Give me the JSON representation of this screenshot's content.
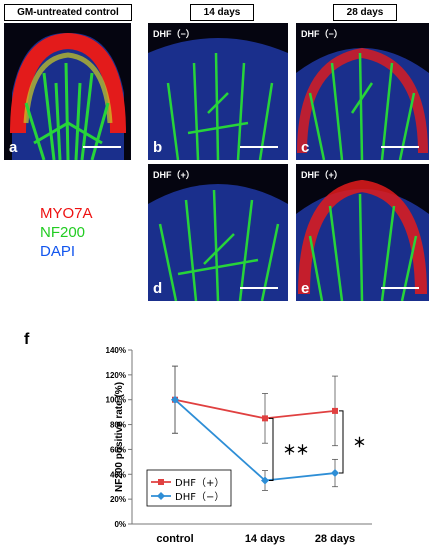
{
  "headers": {
    "control": "GM-untreated control",
    "day14": "14 days",
    "day28": "28 days"
  },
  "panels": {
    "a": {
      "letter": "a",
      "tag": ""
    },
    "b": {
      "letter": "b",
      "tag": "DHF（−）"
    },
    "c": {
      "letter": "c",
      "tag": "DHF（−）"
    },
    "d": {
      "letter": "d",
      "tag": "DHF（+）"
    },
    "e": {
      "letter": "e",
      "tag": "DHF（+）"
    }
  },
  "stains": [
    {
      "name": "MYO7A",
      "color": "#ee1111"
    },
    {
      "name": "NF200",
      "color": "#22cc22"
    },
    {
      "name": "DAPI",
      "color": "#1155ee"
    }
  ],
  "figure_letter": "f",
  "chart_data": {
    "type": "line",
    "categories": [
      "control",
      "14 days",
      "28 days"
    ],
    "ylabel": "NF200 positive rate (%)",
    "ylim": [
      0,
      140
    ],
    "yticks": [
      "0%",
      "20%",
      "40%",
      "60%",
      "80%",
      "100%",
      "120%",
      "140%"
    ],
    "series": [
      {
        "name": "DHF（+）",
        "color": "#e04040",
        "marker": "square",
        "values": [
          100,
          85,
          91
        ],
        "errors": [
          27,
          20,
          28
        ]
      },
      {
        "name": "DHF（−）",
        "color": "#2e8ed6",
        "marker": "diamond",
        "values": [
          100,
          35,
          41
        ],
        "errors": [
          27,
          8,
          11
        ]
      }
    ],
    "annotations": [
      {
        "text": "＊＊",
        "category": "14 days"
      },
      {
        "text": "＊",
        "category": "28 days"
      }
    ],
    "legend_position": "bottom-left"
  }
}
